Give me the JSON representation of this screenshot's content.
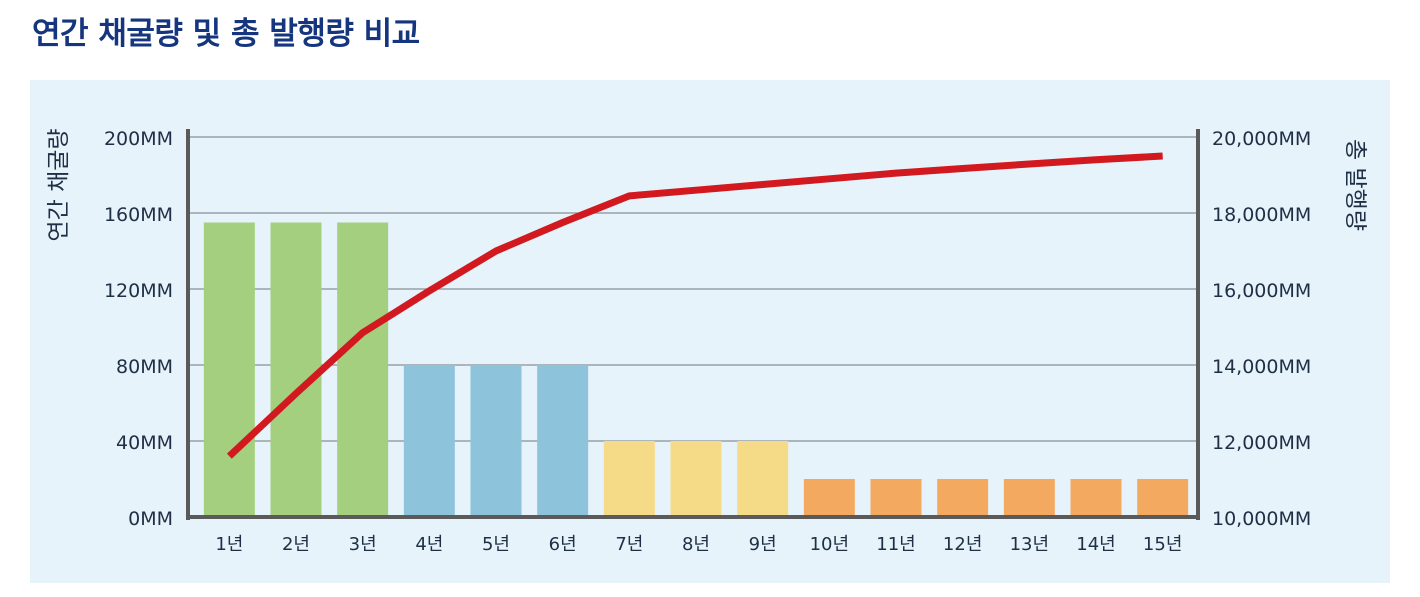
{
  "title": "연간 채굴량 및 총 발행량 비교",
  "colors": {
    "title": "#15357f",
    "panel": "#e6f3fb",
    "axis": "#5a5a5a",
    "grid": "#8a8f96",
    "line": "#d21920",
    "bars": [
      "#a3cf7e",
      "#8ec3dc",
      "#f5db88",
      "#f4a961"
    ]
  },
  "chart_data": {
    "type": "bar",
    "categories": [
      "1년",
      "2년",
      "3년",
      "4년",
      "5년",
      "6년",
      "7년",
      "8년",
      "9년",
      "10년",
      "11년",
      "12년",
      "13년",
      "14년",
      "15년"
    ],
    "left_axis": {
      "label": "연간 채굴량",
      "ticks": [
        "0MM",
        "40MM",
        "80MM",
        "120MM",
        "160MM",
        "200MM"
      ],
      "ylim": [
        0,
        200
      ]
    },
    "right_axis": {
      "label": "총 발행량",
      "ticks": [
        "10,000MM",
        "12,000MM",
        "14,000MM",
        "16,000MM",
        "18,000MM",
        "20,000MM"
      ],
      "ylim": [
        10000,
        20000
      ]
    },
    "grid": true,
    "series": [
      {
        "type": "bar",
        "axis": "left",
        "values": [
          155,
          155,
          155,
          80,
          80,
          80,
          40,
          40,
          40,
          20,
          20,
          20,
          20,
          20,
          20
        ],
        "color_groups": [
          0,
          0,
          0,
          1,
          1,
          1,
          2,
          2,
          2,
          3,
          3,
          3,
          3,
          3,
          3
        ]
      },
      {
        "type": "line",
        "axis": "right",
        "values": [
          11600,
          13250,
          14850,
          15950,
          17000,
          17750,
          18450,
          18600,
          18750,
          18900,
          19050,
          19170,
          19290,
          19400,
          19500
        ]
      }
    ]
  }
}
